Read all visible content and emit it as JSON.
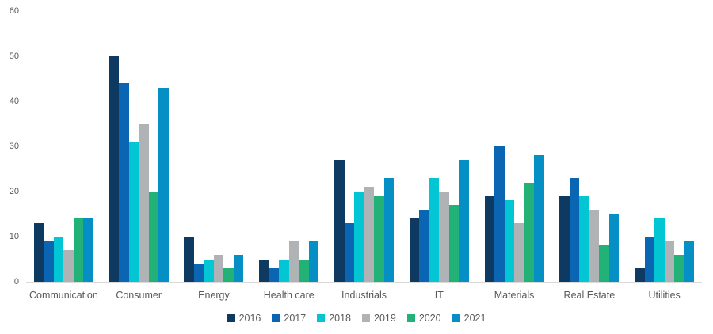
{
  "chart_data": {
    "type": "bar",
    "title": "",
    "xlabel": "",
    "ylabel": "",
    "categories": [
      "Communication",
      "Consumer",
      "Energy",
      "Health care",
      "Industrials",
      "IT",
      "Materials",
      "Real Estate",
      "Utilities"
    ],
    "series": [
      {
        "name": "2016",
        "color": "#0e3a61",
        "values": [
          13,
          50,
          10,
          5,
          27,
          14,
          19,
          19,
          3
        ]
      },
      {
        "name": "2017",
        "color": "#0a66b2",
        "values": [
          9,
          44,
          4,
          3,
          13,
          16,
          30,
          23,
          10
        ]
      },
      {
        "name": "2018",
        "color": "#03c6d5",
        "values": [
          10,
          31,
          5,
          5,
          20,
          23,
          18,
          19,
          14
        ]
      },
      {
        "name": "2019",
        "color": "#b0b3b5",
        "values": [
          7,
          35,
          6,
          9,
          21,
          20,
          13,
          16,
          9
        ]
      },
      {
        "name": "2020",
        "color": "#22b176",
        "values": [
          14,
          20,
          3,
          5,
          19,
          17,
          22,
          8,
          6
        ]
      },
      {
        "name": "2021",
        "color": "#068fc4",
        "values": [
          14,
          43,
          6,
          9,
          23,
          27,
          28,
          15,
          9
        ]
      }
    ],
    "ylim": [
      0,
      60
    ],
    "yticks": [
      0,
      10,
      20,
      30,
      40,
      50,
      60
    ],
    "grid": false,
    "legend_position": "bottom",
    "axis_line_color": "#d9d9d9",
    "text_color": "#595959",
    "background_color": "#ffffff"
  }
}
